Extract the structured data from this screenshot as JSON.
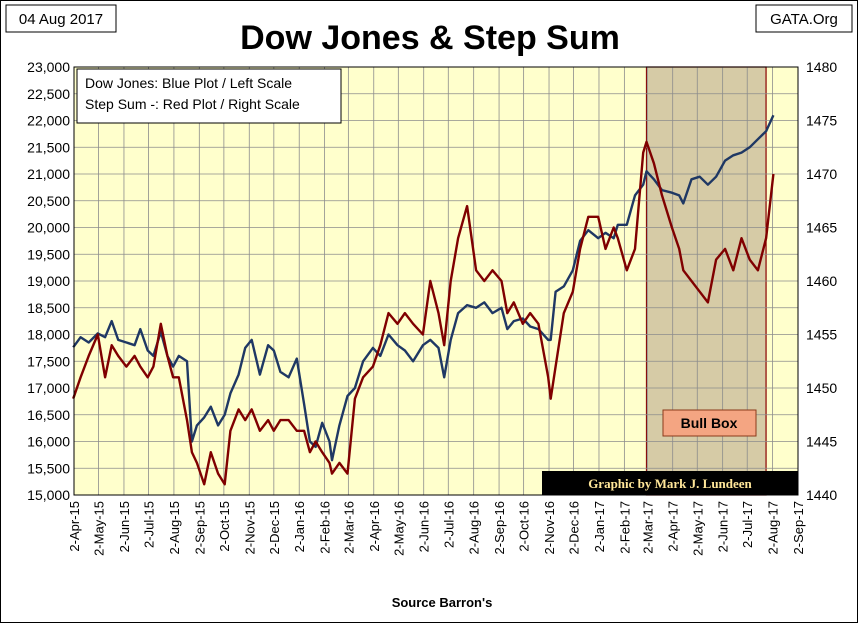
{
  "header": {
    "date": "04 Aug 2017",
    "title": "Dow Jones & Step Sum",
    "source_tag": "GATA.Org"
  },
  "legend": {
    "line1": "Dow Jones: Blue Plot / Left Scale",
    "line2": "Step Sum -: Red Plot / Right Scale"
  },
  "annotations": {
    "bull_box": "Bull Box",
    "credit": "Graphic by Mark J. Lundeen",
    "xlabel": "Source Barron's"
  },
  "colors": {
    "plot_background": "#FFFFCC",
    "dow_series": "#1F3864",
    "step_series": "#800000",
    "bull_box_fill": "#C8B99A",
    "bull_box_label_fill": "#F4A582",
    "credit_fill": "#000000",
    "credit_text": "#FFE699"
  },
  "chart_data": {
    "type": "line",
    "title": "Dow Jones & Step Sum",
    "xlabel": "Source Barron's",
    "ylabel": "",
    "grid": true,
    "legend_position": "top-left",
    "x_ticks": [
      "2-Apr-15",
      "2-May-15",
      "2-Jun-15",
      "2-Jul-15",
      "2-Aug-15",
      "2-Sep-15",
      "2-Oct-15",
      "2-Nov-15",
      "2-Dec-15",
      "2-Jan-16",
      "2-Feb-16",
      "2-Mar-16",
      "2-Apr-16",
      "2-May-16",
      "2-Jun-16",
      "2-Jul-16",
      "2-Aug-16",
      "2-Sep-16",
      "2-Oct-16",
      "2-Nov-16",
      "2-Dec-16",
      "2-Jan-17",
      "2-Feb-17",
      "2-Mar-17",
      "2-Apr-17",
      "2-May-17",
      "2-Jun-17",
      "2-Jul-17",
      "2-Aug-17",
      "2-Sep-17"
    ],
    "y_left": {
      "ylim": [
        15000,
        23000
      ],
      "ticks": [
        "15,000",
        "15,500",
        "16,000",
        "16,500",
        "17,000",
        "17,500",
        "18,000",
        "18,500",
        "19,000",
        "19,500",
        "20,000",
        "20,500",
        "21,000",
        "21,500",
        "22,000",
        "22,500",
        "23,000"
      ]
    },
    "y_right": {
      "ylim": [
        1440,
        1480
      ],
      "ticks": [
        "1440",
        "1445",
        "1450",
        "1455",
        "1460",
        "1465",
        "1470",
        "1475",
        "1480"
      ]
    },
    "bull_box": {
      "x_start": "2017-03-01",
      "x_end": "2017-07-25",
      "label": "Bull Box"
    },
    "series": [
      {
        "name": "Dow Jones",
        "axis": "left",
        "points": [
          [
            "2015-04-01",
            17760
          ],
          [
            "2015-04-10",
            17950
          ],
          [
            "2015-04-20",
            17850
          ],
          [
            "2015-05-01",
            18020
          ],
          [
            "2015-05-10",
            17950
          ],
          [
            "2015-05-18",
            18250
          ],
          [
            "2015-05-26",
            17900
          ],
          [
            "2015-06-05",
            17850
          ],
          [
            "2015-06-15",
            17800
          ],
          [
            "2015-06-22",
            18100
          ],
          [
            "2015-07-01",
            17700
          ],
          [
            "2015-07-08",
            17600
          ],
          [
            "2015-07-17",
            18050
          ],
          [
            "2015-07-25",
            17600
          ],
          [
            "2015-08-01",
            17400
          ],
          [
            "2015-08-08",
            17600
          ],
          [
            "2015-08-18",
            17500
          ],
          [
            "2015-08-24",
            16000
          ],
          [
            "2015-08-30",
            16300
          ],
          [
            "2015-09-08",
            16450
          ],
          [
            "2015-09-16",
            16650
          ],
          [
            "2015-09-25",
            16300
          ],
          [
            "2015-10-03",
            16500
          ],
          [
            "2015-10-10",
            16900
          ],
          [
            "2015-10-20",
            17250
          ],
          [
            "2015-10-28",
            17750
          ],
          [
            "2015-11-05",
            17900
          ],
          [
            "2015-11-15",
            17250
          ],
          [
            "2015-11-25",
            17800
          ],
          [
            "2015-12-02",
            17700
          ],
          [
            "2015-12-10",
            17300
          ],
          [
            "2015-12-20",
            17200
          ],
          [
            "2015-12-30",
            17550
          ],
          [
            "2016-01-08",
            16700
          ],
          [
            "2016-01-15",
            16000
          ],
          [
            "2016-01-22",
            15900
          ],
          [
            "2016-01-30",
            16350
          ],
          [
            "2016-02-08",
            16000
          ],
          [
            "2016-02-11",
            15650
          ],
          [
            "2016-02-20",
            16300
          ],
          [
            "2016-03-01",
            16850
          ],
          [
            "2016-03-10",
            17000
          ],
          [
            "2016-03-20",
            17500
          ],
          [
            "2016-04-01",
            17750
          ],
          [
            "2016-04-10",
            17600
          ],
          [
            "2016-04-20",
            18000
          ],
          [
            "2016-05-01",
            17800
          ],
          [
            "2016-05-10",
            17700
          ],
          [
            "2016-05-20",
            17500
          ],
          [
            "2016-06-01",
            17800
          ],
          [
            "2016-06-10",
            17900
          ],
          [
            "2016-06-20",
            17750
          ],
          [
            "2016-06-27",
            17200
          ],
          [
            "2016-07-05",
            17900
          ],
          [
            "2016-07-14",
            18400
          ],
          [
            "2016-07-25",
            18550
          ],
          [
            "2016-08-05",
            18500
          ],
          [
            "2016-08-15",
            18600
          ],
          [
            "2016-08-25",
            18400
          ],
          [
            "2016-09-05",
            18500
          ],
          [
            "2016-09-12",
            18100
          ],
          [
            "2016-09-20",
            18250
          ],
          [
            "2016-10-01",
            18300
          ],
          [
            "2016-10-10",
            18150
          ],
          [
            "2016-10-20",
            18100
          ],
          [
            "2016-11-01",
            17900
          ],
          [
            "2016-11-04",
            17900
          ],
          [
            "2016-11-10",
            18800
          ],
          [
            "2016-11-20",
            18900
          ],
          [
            "2016-12-01",
            19200
          ],
          [
            "2016-12-10",
            19750
          ],
          [
            "2016-12-20",
            19950
          ],
          [
            "2017-01-01",
            19800
          ],
          [
            "2017-01-10",
            19900
          ],
          [
            "2017-01-20",
            19800
          ],
          [
            "2017-01-25",
            20050
          ],
          [
            "2017-02-05",
            20050
          ],
          [
            "2017-02-15",
            20600
          ],
          [
            "2017-02-25",
            20800
          ],
          [
            "2017-03-01",
            21050
          ],
          [
            "2017-03-10",
            20900
          ],
          [
            "2017-03-20",
            20700
          ],
          [
            "2017-04-01",
            20650
          ],
          [
            "2017-04-10",
            20600
          ],
          [
            "2017-04-15",
            20450
          ],
          [
            "2017-04-25",
            20900
          ],
          [
            "2017-05-05",
            20950
          ],
          [
            "2017-05-15",
            20800
          ],
          [
            "2017-05-25",
            20950
          ],
          [
            "2017-06-05",
            21250
          ],
          [
            "2017-06-15",
            21350
          ],
          [
            "2017-06-25",
            21400
          ],
          [
            "2017-07-05",
            21500
          ],
          [
            "2017-07-15",
            21650
          ],
          [
            "2017-07-25",
            21800
          ],
          [
            "2017-08-03",
            22100
          ]
        ]
      },
      {
        "name": "Step Sum",
        "axis": "right",
        "points": [
          [
            "2015-04-01",
            1449
          ],
          [
            "2015-04-10",
            1451
          ],
          [
            "2015-04-20",
            1453
          ],
          [
            "2015-05-01",
            1455
          ],
          [
            "2015-05-10",
            1451
          ],
          [
            "2015-05-18",
            1454
          ],
          [
            "2015-05-26",
            1453
          ],
          [
            "2015-06-05",
            1452
          ],
          [
            "2015-06-15",
            1453
          ],
          [
            "2015-06-22",
            1452
          ],
          [
            "2015-07-01",
            1451
          ],
          [
            "2015-07-08",
            1452
          ],
          [
            "2015-07-17",
            1456
          ],
          [
            "2015-07-25",
            1453
          ],
          [
            "2015-08-01",
            1451
          ],
          [
            "2015-08-08",
            1451
          ],
          [
            "2015-08-18",
            1447
          ],
          [
            "2015-08-24",
            1444
          ],
          [
            "2015-08-30",
            1443
          ],
          [
            "2015-09-08",
            1441
          ],
          [
            "2015-09-16",
            1444
          ],
          [
            "2015-09-25",
            1442
          ],
          [
            "2015-10-03",
            1441
          ],
          [
            "2015-10-10",
            1446
          ],
          [
            "2015-10-20",
            1448
          ],
          [
            "2015-10-28",
            1447
          ],
          [
            "2015-11-05",
            1448
          ],
          [
            "2015-11-15",
            1446
          ],
          [
            "2015-11-25",
            1447
          ],
          [
            "2015-12-02",
            1446
          ],
          [
            "2015-12-10",
            1447
          ],
          [
            "2015-12-20",
            1447
          ],
          [
            "2015-12-30",
            1446
          ],
          [
            "2016-01-08",
            1446
          ],
          [
            "2016-01-15",
            1444
          ],
          [
            "2016-01-22",
            1445
          ],
          [
            "2016-01-30",
            1444
          ],
          [
            "2016-02-08",
            1443
          ],
          [
            "2016-02-11",
            1442
          ],
          [
            "2016-02-20",
            1443
          ],
          [
            "2016-03-01",
            1442
          ],
          [
            "2016-03-10",
            1449
          ],
          [
            "2016-03-20",
            1451
          ],
          [
            "2016-04-01",
            1452
          ],
          [
            "2016-04-10",
            1454
          ],
          [
            "2016-04-20",
            1457
          ],
          [
            "2016-05-01",
            1456
          ],
          [
            "2016-05-10",
            1457
          ],
          [
            "2016-05-20",
            1456
          ],
          [
            "2016-06-01",
            1455
          ],
          [
            "2016-06-10",
            1460
          ],
          [
            "2016-06-20",
            1457
          ],
          [
            "2016-06-27",
            1454
          ],
          [
            "2016-07-05",
            1460
          ],
          [
            "2016-07-14",
            1464
          ],
          [
            "2016-07-25",
            1467
          ],
          [
            "2016-08-05",
            1461
          ],
          [
            "2016-08-15",
            1460
          ],
          [
            "2016-08-25",
            1461
          ],
          [
            "2016-09-05",
            1460
          ],
          [
            "2016-09-12",
            1457
          ],
          [
            "2016-09-20",
            1458
          ],
          [
            "2016-10-01",
            1456
          ],
          [
            "2016-10-10",
            1457
          ],
          [
            "2016-10-20",
            1456
          ],
          [
            "2016-11-01",
            1451
          ],
          [
            "2016-11-04",
            1449
          ],
          [
            "2016-11-10",
            1452
          ],
          [
            "2016-11-20",
            1457
          ],
          [
            "2016-12-01",
            1459
          ],
          [
            "2016-12-10",
            1463
          ],
          [
            "2016-12-20",
            1466
          ],
          [
            "2017-01-01",
            1466
          ],
          [
            "2017-01-10",
            1463
          ],
          [
            "2017-01-20",
            1465
          ],
          [
            "2017-01-25",
            1464
          ],
          [
            "2017-02-05",
            1461
          ],
          [
            "2017-02-15",
            1463
          ],
          [
            "2017-02-25",
            1472
          ],
          [
            "2017-03-01",
            1473
          ],
          [
            "2017-03-10",
            1471
          ],
          [
            "2017-03-20",
            1468
          ],
          [
            "2017-04-01",
            1465
          ],
          [
            "2017-04-10",
            1463
          ],
          [
            "2017-04-15",
            1461
          ],
          [
            "2017-04-25",
            1460
          ],
          [
            "2017-05-05",
            1459
          ],
          [
            "2017-05-15",
            1458
          ],
          [
            "2017-05-25",
            1462
          ],
          [
            "2017-06-05",
            1463
          ],
          [
            "2017-06-15",
            1461
          ],
          [
            "2017-06-25",
            1464
          ],
          [
            "2017-07-05",
            1462
          ],
          [
            "2017-07-15",
            1461
          ],
          [
            "2017-07-25",
            1464
          ],
          [
            "2017-08-03",
            1470
          ]
        ]
      }
    ]
  }
}
